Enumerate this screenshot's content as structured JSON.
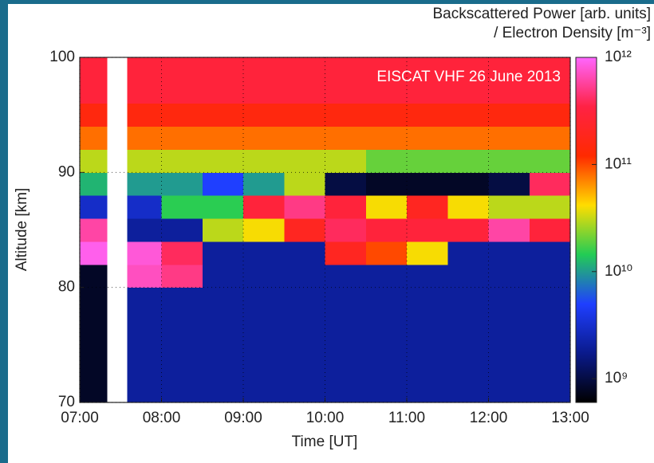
{
  "chart_data": {
    "type": "heatmap",
    "annotation": "EISCAT VHF 26 June 2013",
    "colorbar_label": [
      "Backscattered Power [arb. units]",
      "/ Electron Density [m⁻³]"
    ],
    "xlabel": "Time [UT]",
    "ylabel": "Altitude [km]",
    "xlim": [
      7,
      13
    ],
    "xticks": [
      {
        "value": 7,
        "label": "07:00"
      },
      {
        "value": 8,
        "label": "08:00"
      },
      {
        "value": 9,
        "label": "09:00"
      },
      {
        "value": 10,
        "label": "10:00"
      },
      {
        "value": 11,
        "label": "11:00"
      },
      {
        "value": 12,
        "label": "12:00"
      },
      {
        "value": 13,
        "label": "13:00"
      }
    ],
    "ylim": [
      70,
      100
    ],
    "yticks": [
      70,
      80,
      90,
      100
    ],
    "grid": true,
    "clim": [
      600000000.0,
      1000000000000.0
    ],
    "color_log": true,
    "cticks": [
      {
        "value": 1000000000.0,
        "label": "10⁹"
      },
      {
        "value": 10000000000.0,
        "label": "10¹⁰"
      },
      {
        "value": 100000000000.0,
        "label": "10¹¹"
      },
      {
        "value": 1000000000000.0,
        "label": "10¹²"
      }
    ],
    "colorscale": [
      "#000000",
      "#0a1a8c",
      "#1f3fff",
      "#22cc55",
      "#ffdd00",
      "#ff2a00",
      "#ff2244",
      "#ff66ff"
    ],
    "x_edges": [
      7,
      7.33,
      7.58,
      8,
      8.5,
      9,
      9.5,
      10,
      10.5,
      11,
      11.5,
      12,
      12.5,
      13
    ],
    "y_edges": [
      70,
      72,
      74,
      76,
      78,
      80,
      82,
      84,
      86,
      88,
      90,
      92,
      94,
      96,
      98,
      100
    ],
    "z": [
      [
        800000000.0,
        800000000.0,
        800000000.0,
        800000000.0,
        800000000.0,
        800000000.0,
        900000000000.0,
        600000000000.0,
        3000000000.0,
        12000000000.0,
        30000000000.0,
        80000000000.0,
        150000000000.0,
        300000000000.0,
        300000000000.0
      ],
      [
        null,
        null,
        null,
        null,
        null,
        null,
        null,
        null,
        null,
        null,
        null,
        null,
        null,
        null,
        null
      ],
      [
        2000000000.0,
        2000000000.0,
        2000000000.0,
        2000000000.0,
        2000000000.0,
        700000000000.0,
        800000000000.0,
        2000000000.0,
        3000000000.0,
        10000000000.0,
        30000000000.0,
        80000000000.0,
        150000000000.0,
        300000000000.0,
        300000000000.0
      ],
      [
        2000000000.0,
        2000000000.0,
        2000000000.0,
        2000000000.0,
        2000000000.0,
        500000000000.0,
        400000000000.0,
        2000000000.0,
        15000000000.0,
        10000000000.0,
        30000000000.0,
        80000000000.0,
        150000000000.0,
        300000000000.0,
        300000000000.0
      ],
      [
        2000000000.0,
        2000000000.0,
        2000000000.0,
        2000000000.0,
        2000000000.0,
        2000000000.0,
        2000000000.0,
        30000000000.0,
        15000000000.0,
        5000000000.0,
        30000000000.0,
        80000000000.0,
        150000000000.0,
        300000000000.0,
        300000000000.0
      ],
      [
        2000000000.0,
        2000000000.0,
        2000000000.0,
        2000000000.0,
        2000000000.0,
        2000000000.0,
        2000000000.0,
        40000000000.0,
        300000000000.0,
        10000000000.0,
        30000000000.0,
        80000000000.0,
        150000000000.0,
        300000000000.0,
        300000000000.0
      ],
      [
        2000000000.0,
        2000000000.0,
        2000000000.0,
        2000000000.0,
        2000000000.0,
        2000000000.0,
        2000000000.0,
        200000000000.0,
        500000000000.0,
        30000000000.0,
        30000000000.0,
        80000000000.0,
        150000000000.0,
        300000000000.0,
        300000000000.0
      ],
      [
        2000000000.0,
        2000000000.0,
        2000000000.0,
        2000000000.0,
        2000000000.0,
        2000000000.0,
        200000000000.0,
        400000000000.0,
        300000000000.0,
        1000000000.0,
        30000000000.0,
        80000000000.0,
        150000000000.0,
        300000000000.0,
        300000000000.0
      ],
      [
        2000000000.0,
        2000000000.0,
        2000000000.0,
        2000000000.0,
        2000000000.0,
        2000000000.0,
        100000000000.0,
        300000000000.0,
        40000000000.0,
        800000000.0,
        20000000000.0,
        80000000000.0,
        150000000000.0,
        300000000000.0,
        300000000000.0
      ],
      [
        2000000000.0,
        2000000000.0,
        2000000000.0,
        2000000000.0,
        2000000000.0,
        2000000000.0,
        40000000000.0,
        300000000000.0,
        200000000000.0,
        800000000.0,
        20000000000.0,
        80000000000.0,
        150000000000.0,
        300000000000.0,
        300000000000.0
      ],
      [
        2000000000.0,
        2000000000.0,
        2000000000.0,
        2000000000.0,
        2000000000.0,
        2000000000.0,
        2000000000.0,
        300000000000.0,
        40000000000.0,
        800000000.0,
        20000000000.0,
        80000000000.0,
        150000000000.0,
        300000000000.0,
        300000000000.0
      ],
      [
        2000000000.0,
        2000000000.0,
        2000000000.0,
        2000000000.0,
        2000000000.0,
        2000000000.0,
        2000000000.0,
        600000000000.0,
        30000000000.0,
        1000000000.0,
        20000000000.0,
        80000000000.0,
        150000000000.0,
        300000000000.0,
        300000000000.0
      ],
      [
        2000000000.0,
        2000000000.0,
        2000000000.0,
        2000000000.0,
        2000000000.0,
        2000000000.0,
        2000000000.0,
        300000000000.0,
        30000000000.0,
        400000000000.0,
        20000000000.0,
        80000000000.0,
        150000000000.0,
        300000000000.0,
        300000000000.0
      ]
    ]
  }
}
